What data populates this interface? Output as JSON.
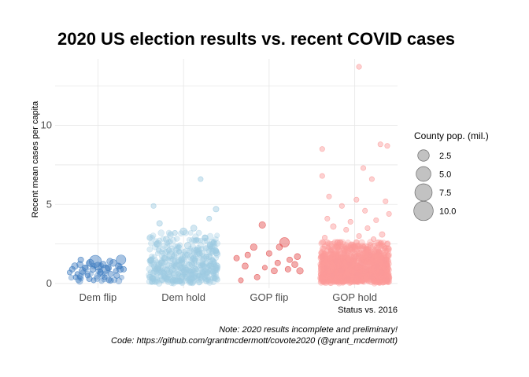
{
  "chart_data": {
    "type": "scatter",
    "title": "2020 US election results vs. recent COVID cases",
    "xlabel": "Status vs. 2016",
    "ylabel": "Recent mean cases per capita",
    "categories": [
      "Dem flip",
      "Dem hold",
      "GOP flip",
      "GOP hold"
    ],
    "ylim": [
      -0.3,
      14.2
    ],
    "yticks": [
      0,
      5,
      10
    ],
    "colors": {
      "Dem flip": "#3b7bbf",
      "Dem hold": "#9ecae1",
      "GOP flip": "#e34a4a",
      "GOP hold": "#fb9a99"
    },
    "series": [
      {
        "name": "Dem flip",
        "points": [
          [
            -0.3,
            0.9,
            0.2
          ],
          [
            -0.27,
            1.1,
            0.4
          ],
          [
            -0.24,
            0.6,
            0.1
          ],
          [
            -0.21,
            1.2,
            0.3
          ],
          [
            -0.18,
            0.8,
            0.5
          ],
          [
            -0.15,
            1.0,
            0.2
          ],
          [
            -0.12,
            0.5,
            0.1
          ],
          [
            -0.09,
            1.3,
            0.6
          ],
          [
            -0.06,
            0.9,
            0.3
          ],
          [
            -0.03,
            1.4,
            3.0
          ],
          [
            0.0,
            1.1,
            0.8
          ],
          [
            0.03,
            0.7,
            0.2
          ],
          [
            0.06,
            1.2,
            0.4
          ],
          [
            0.09,
            0.9,
            1.0
          ],
          [
            0.12,
            1.0,
            0.3
          ],
          [
            0.15,
            0.6,
            0.2
          ],
          [
            0.18,
            1.3,
            0.5
          ],
          [
            0.21,
            0.8,
            0.1
          ],
          [
            0.24,
            1.1,
            0.3
          ],
          [
            0.27,
            1.5,
            1.5
          ],
          [
            0.3,
            0.9,
            0.2
          ],
          [
            -0.26,
            0.4,
            0.1
          ],
          [
            -0.1,
            0.3,
            0.2
          ],
          [
            0.08,
            0.4,
            0.1
          ],
          [
            0.22,
            0.5,
            0.2
          ],
          [
            -0.2,
            1.5,
            0.2
          ],
          [
            0.14,
            1.4,
            0.3
          ],
          [
            -0.05,
            0.2,
            0.1
          ],
          [
            0.26,
            0.9,
            0.4
          ],
          [
            -0.33,
            0.7,
            0.1
          ]
        ]
      },
      {
        "name": "Dem hold",
        "points": [
          [
            -0.35,
            4.9,
            0.1
          ],
          [
            0.2,
            6.6,
            0.1
          ],
          [
            0.38,
            4.7,
            0.2
          ],
          [
            0.3,
            4.1,
            0.1
          ],
          [
            -0.28,
            3.8,
            0.2
          ],
          [
            0.12,
            3.5,
            0.3
          ],
          [
            -0.1,
            3.2,
            0.1
          ],
          [
            0.0,
            3.3,
            0.5
          ],
          [
            -0.2,
            2.8,
            0.3
          ],
          [
            0.25,
            2.9,
            0.2
          ],
          [
            0.35,
            2.6,
            0.1
          ],
          [
            -0.3,
            2.5,
            0.6
          ],
          [
            0.05,
            2.4,
            0.4
          ],
          [
            -0.05,
            2.0,
            0.1
          ],
          [
            0.15,
            2.1,
            0.2
          ],
          [
            -0.15,
            1.8,
            0.8
          ],
          [
            0.3,
            1.7,
            0.3
          ],
          [
            -0.38,
            1.5,
            0.2
          ],
          [
            0.2,
            1.4,
            1.2
          ],
          [
            -0.25,
            1.3,
            0.4
          ],
          [
            0.1,
            1.2,
            0.2
          ],
          [
            -0.08,
            1.1,
            0.5
          ],
          [
            0.38,
            1.0,
            0.3
          ],
          [
            -0.33,
            0.9,
            0.1
          ],
          [
            0.02,
            0.8,
            0.7
          ],
          [
            0.28,
            0.7,
            0.2
          ],
          [
            -0.18,
            0.6,
            0.4
          ],
          [
            0.18,
            0.5,
            0.1
          ],
          [
            -0.02,
            0.4,
            0.3
          ],
          [
            -0.36,
            0.3,
            0.2
          ],
          [
            0.36,
            0.3,
            0.1
          ],
          [
            -0.12,
            0.2,
            0.2
          ],
          [
            0.08,
            0.1,
            0.1
          ],
          [
            -0.22,
            1.6,
            0.2
          ],
          [
            0.22,
            1.9,
            0.3
          ],
          [
            -0.02,
            1.3,
            0.2
          ],
          [
            0.32,
            1.1,
            0.4
          ],
          [
            -0.3,
            1.0,
            0.3
          ],
          [
            0.14,
            0.9,
            0.2
          ],
          [
            -0.06,
            0.6,
            0.1
          ]
        ]
      },
      {
        "name": "GOP flip",
        "points": [
          [
            -0.38,
            1.6,
            0.2
          ],
          [
            -0.28,
            1.1,
            0.3
          ],
          [
            -0.18,
            2.3,
            0.4
          ],
          [
            -0.08,
            3.7,
            0.4
          ],
          [
            0.0,
            1.9,
            0.2
          ],
          [
            0.06,
            0.8,
            0.3
          ],
          [
            0.12,
            2.3,
            0.3
          ],
          [
            0.18,
            2.6,
            1.5
          ],
          [
            0.24,
            1.5,
            0.2
          ],
          [
            0.3,
            1.2,
            0.3
          ],
          [
            0.36,
            0.8,
            0.4
          ],
          [
            -0.05,
            1.0,
            0.1
          ],
          [
            -0.14,
            0.4,
            0.2
          ],
          [
            0.1,
            1.3,
            0.2
          ],
          [
            -0.25,
            1.8,
            0.2
          ],
          [
            0.22,
            0.9,
            0.2
          ],
          [
            0.33,
            1.7,
            0.3
          ],
          [
            -0.33,
            0.2,
            0.1
          ]
        ]
      },
      {
        "name": "GOP hold",
        "points": [
          [
            0.05,
            13.7,
            0.1
          ],
          [
            -0.38,
            8.5,
            0.1
          ],
          [
            0.3,
            8.8,
            0.1
          ],
          [
            0.38,
            8.7,
            0.1
          ],
          [
            0.1,
            7.3,
            0.1
          ],
          [
            -0.38,
            6.8,
            0.1
          ],
          [
            0.2,
            6.6,
            0.1
          ],
          [
            -0.3,
            5.5,
            0.1
          ],
          [
            0.02,
            5.3,
            0.1
          ],
          [
            0.36,
            5.2,
            0.1
          ],
          [
            -0.15,
            4.9,
            0.1
          ],
          [
            0.12,
            4.6,
            0.1
          ],
          [
            0.4,
            4.4,
            0.1
          ],
          [
            -0.32,
            4.1,
            0.1
          ],
          [
            0.25,
            4.0,
            0.1
          ],
          [
            -0.05,
            3.9,
            0.1
          ],
          [
            -0.25,
            3.6,
            0.2
          ],
          [
            0.15,
            3.5,
            0.1
          ],
          [
            -0.1,
            3.4,
            0.1
          ],
          [
            0.32,
            3.1,
            0.2
          ],
          [
            0.05,
            3.0,
            0.1
          ],
          [
            -0.35,
            2.9,
            0.1
          ],
          [
            0.22,
            2.8,
            0.1
          ],
          [
            -0.2,
            2.6,
            0.2
          ],
          [
            0.38,
            2.5,
            0.1
          ],
          [
            -0.02,
            2.4,
            0.3
          ],
          [
            0.1,
            2.2,
            0.1
          ],
          [
            -0.28,
            2.1,
            0.1
          ],
          [
            0.28,
            2.0,
            0.2
          ],
          [
            -0.12,
            1.9,
            0.1
          ],
          [
            0.18,
            1.8,
            0.1
          ],
          [
            -0.38,
            1.7,
            0.2
          ],
          [
            0.0,
            1.6,
            0.1
          ],
          [
            0.35,
            1.5,
            0.1
          ],
          [
            -0.22,
            1.4,
            0.1
          ],
          [
            0.08,
            1.3,
            0.3
          ],
          [
            -0.06,
            1.2,
            0.1
          ],
          [
            0.26,
            1.1,
            0.1
          ],
          [
            -0.33,
            1.0,
            0.1
          ],
          [
            0.14,
            0.9,
            0.1
          ],
          [
            -0.16,
            0.8,
            0.2
          ],
          [
            0.31,
            0.7,
            0.1
          ],
          [
            0.03,
            0.6,
            0.1
          ],
          [
            -0.26,
            0.5,
            0.1
          ],
          [
            0.2,
            0.4,
            0.1
          ],
          [
            -0.08,
            0.3,
            0.1
          ],
          [
            0.38,
            0.2,
            0.1
          ],
          [
            -0.36,
            0.1,
            0.1
          ]
        ]
      }
    ],
    "size_legend": {
      "title": "County pop. (mil.)",
      "labels": [
        "2.5",
        "5.0",
        "7.5",
        "10.0"
      ],
      "values": [
        2.5,
        5.0,
        7.5,
        10.0
      ]
    },
    "caption": [
      "Note: 2020 results incomplete and preliminary!",
      "Code: https://github.com/grantmcdermott/covote2020 (@grant_mcdermott)"
    ]
  }
}
